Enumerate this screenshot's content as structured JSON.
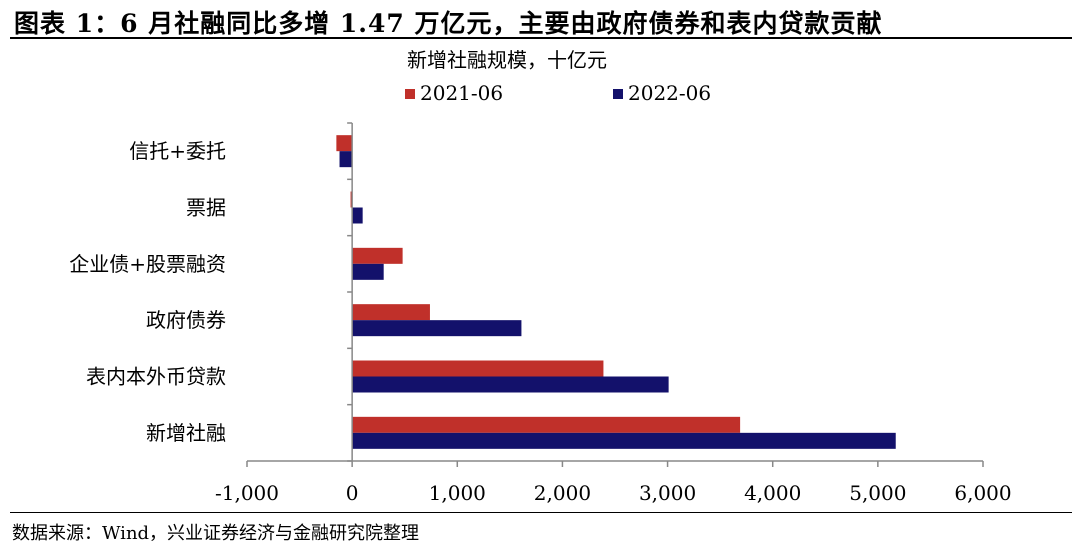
{
  "figure_title": "图表 1：6 月社融同比多增 1.47 万亿元，主要由政府债券和表内贷款贡献",
  "source_note": "数据来源：Wind，兴业证券经济与金融研究院整理",
  "colors": {
    "series_2021": "#c0302a",
    "series_2022": "#13116b",
    "axis": "#888888"
  },
  "chart_data": {
    "type": "bar",
    "orientation": "horizontal",
    "title": "新增社融规模，十亿元",
    "categories": [
      "信托+委托",
      "票据",
      "企业债+股票融资",
      "政府债券",
      "表内本外币贷款",
      "新增社融"
    ],
    "series": [
      {
        "name": "2021-06",
        "values": [
          -150,
          -15,
          480,
          740,
          2390,
          3690
        ]
      },
      {
        "name": "2022-06",
        "values": [
          -120,
          100,
          300,
          1610,
          3010,
          5170
        ]
      }
    ],
    "xlim": [
      -1000,
      6000
    ],
    "xticks": [
      -1000,
      0,
      1000,
      2000,
      3000,
      4000,
      5000,
      6000
    ],
    "xtick_labels": [
      "-1,000",
      "0",
      "1,000",
      "2,000",
      "3,000",
      "4,000",
      "5,000",
      "6,000"
    ],
    "legend_position": "top",
    "grid": false
  }
}
